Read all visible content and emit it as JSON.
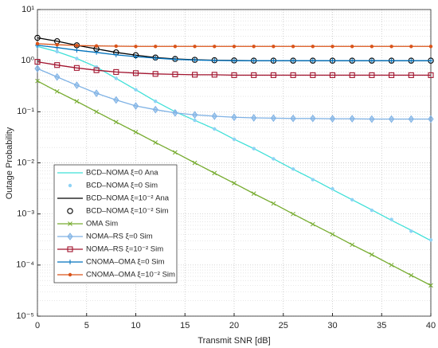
{
  "chart_data": {
    "type": "line",
    "xlabel": "Transmit SNR [dB]",
    "ylabel": "Outage Probability",
    "x": [
      0,
      2,
      4,
      6,
      8,
      10,
      12,
      14,
      16,
      18,
      20,
      22,
      24,
      26,
      28,
      30,
      32,
      34,
      36,
      38,
      40
    ],
    "xlim": [
      0,
      40
    ],
    "xticks": [
      0,
      5,
      10,
      15,
      20,
      25,
      30,
      35,
      40
    ],
    "ylim": [
      1e-05,
      10
    ],
    "log_y": true,
    "grid": true,
    "legend": "lower left",
    "yticks": [
      {
        "value": 1e-05,
        "label": "10⁻⁵"
      },
      {
        "value": 0.0001,
        "label": "10⁻⁴"
      },
      {
        "value": 0.001,
        "label": "10⁻³"
      },
      {
        "value": 0.01,
        "label": "10⁻²"
      },
      {
        "value": 0.1,
        "label": "10⁻¹"
      },
      {
        "value": 1,
        "label": "10⁰"
      },
      {
        "value": 10,
        "label": "10¹"
      }
    ],
    "series": [
      {
        "name": "BCD–NOMA ξ=0 Ana",
        "color": "#3fe0d8",
        "line": true,
        "marker": "none",
        "values": [
          1.9,
          1.5,
          1.1,
          0.75,
          0.45,
          0.27,
          0.16,
          0.1,
          0.068,
          0.046,
          0.029,
          0.019,
          0.012,
          0.0075,
          0.0048,
          0.003,
          0.0019,
          0.0012,
          0.00075,
          0.00048,
          0.0003
        ]
      },
      {
        "name": "BCD–NOMA ξ=0 Sim",
        "color": "#8fd3f5",
        "line": false,
        "marker": "dot",
        "values": [
          1.9,
          1.5,
          1.1,
          0.75,
          0.45,
          0.27,
          0.16,
          0.1,
          0.068,
          0.046,
          0.029,
          0.019,
          0.012,
          0.0076,
          0.0047,
          0.0031,
          0.0019,
          0.00118,
          0.00078,
          0.00046,
          0.00031
        ]
      },
      {
        "name": "BCD–NOMA ξ=10⁻² Ana",
        "color": "#000000",
        "line": true,
        "marker": "none",
        "values": [
          2.8,
          2.4,
          2.0,
          1.7,
          1.45,
          1.28,
          1.15,
          1.08,
          1.04,
          1.02,
          1.01,
          1.0,
          1.0,
          1.0,
          1.0,
          1.0,
          1.0,
          1.0,
          1.0,
          1.0,
          1.0
        ]
      },
      {
        "name": "BCD–NOMA ξ=10⁻² Sim",
        "color": "#000000",
        "line": false,
        "marker": "circle",
        "values": [
          2.8,
          2.4,
          2.0,
          1.7,
          1.45,
          1.28,
          1.15,
          1.08,
          1.04,
          1.02,
          1.01,
          1.0,
          1.0,
          1.0,
          1.0,
          1.0,
          1.0,
          1.0,
          1.0,
          1.0,
          1.0
        ]
      },
      {
        "name": "OMA Sim",
        "color": "#77ac30",
        "line": true,
        "marker": "x",
        "values": [
          0.4,
          0.25,
          0.16,
          0.1,
          0.063,
          0.04,
          0.025,
          0.016,
          0.01,
          0.0063,
          0.004,
          0.0025,
          0.0016,
          0.001,
          0.00063,
          0.0004,
          0.00025,
          0.00016,
          0.0001,
          6.3e-05,
          4e-05
        ]
      },
      {
        "name": "NOMA–RS ξ=0 Sim",
        "color": "#7fb2e5",
        "line": true,
        "marker": "diamond",
        "values": [
          0.7,
          0.48,
          0.33,
          0.23,
          0.17,
          0.13,
          0.11,
          0.095,
          0.087,
          0.082,
          0.078,
          0.076,
          0.075,
          0.074,
          0.074,
          0.073,
          0.073,
          0.072,
          0.072,
          0.072,
          0.072
        ]
      },
      {
        "name": "NOMA–RS ξ=10⁻² Sim",
        "color": "#a2142f",
        "line": true,
        "marker": "square",
        "values": [
          0.95,
          0.82,
          0.72,
          0.65,
          0.6,
          0.57,
          0.55,
          0.54,
          0.53,
          0.53,
          0.52,
          0.52,
          0.52,
          0.52,
          0.52,
          0.52,
          0.52,
          0.52,
          0.52,
          0.52,
          0.52
        ]
      },
      {
        "name": "CNOMA–OMA ξ=0 Sim",
        "color": "#0072bd",
        "line": true,
        "marker": "plus",
        "values": [
          2.0,
          1.8,
          1.6,
          1.45,
          1.3,
          1.2,
          1.12,
          1.06,
          1.03,
          1.01,
          1.0,
          1.0,
          1.0,
          1.0,
          1.0,
          1.0,
          1.0,
          1.0,
          1.0,
          1.0,
          1.0
        ]
      },
      {
        "name": "CNOMA–OMA ξ=10⁻² Sim",
        "color": "#d95319",
        "line": true,
        "marker": "dot",
        "values": [
          2.15,
          2.05,
          1.98,
          1.94,
          1.92,
          1.9,
          1.9,
          1.9,
          1.9,
          1.9,
          1.9,
          1.9,
          1.9,
          1.9,
          1.9,
          1.9,
          1.9,
          1.9,
          1.9,
          1.9,
          1.9
        ]
      }
    ]
  }
}
